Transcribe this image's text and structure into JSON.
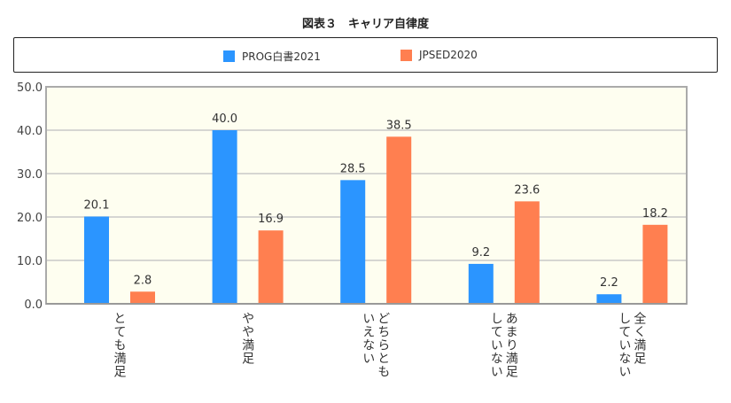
{
  "chart_data": {
    "type": "bar",
    "title": "図表３　キャリア自律度",
    "categories": [
      "とても満足",
      "やや満足",
      "どちらとも\nいえない",
      "あまり満足\nしていない",
      "全く満足\nしていない"
    ],
    "series": [
      {
        "name": "PROG白書2021",
        "color": "#2b95ff",
        "values": [
          20.1,
          40.0,
          28.5,
          9.2,
          2.2
        ],
        "labels": [
          "20.1",
          "40.0",
          "28.5",
          "9.2",
          "2.2"
        ]
      },
      {
        "name": "JPSED2020",
        "color": "#ff7f50",
        "values": [
          2.8,
          16.9,
          38.5,
          23.6,
          18.2
        ],
        "labels": [
          "2.8",
          "16.9",
          "38.5",
          "23.6",
          "18.2"
        ]
      }
    ],
    "ylim": [
      0,
      50
    ],
    "yticks": [
      "0.0",
      "10.0",
      "20.0",
      "30.0",
      "40.0",
      "50.0"
    ],
    "grid": true,
    "legend": "top",
    "plot_bg": "#fefef0"
  }
}
